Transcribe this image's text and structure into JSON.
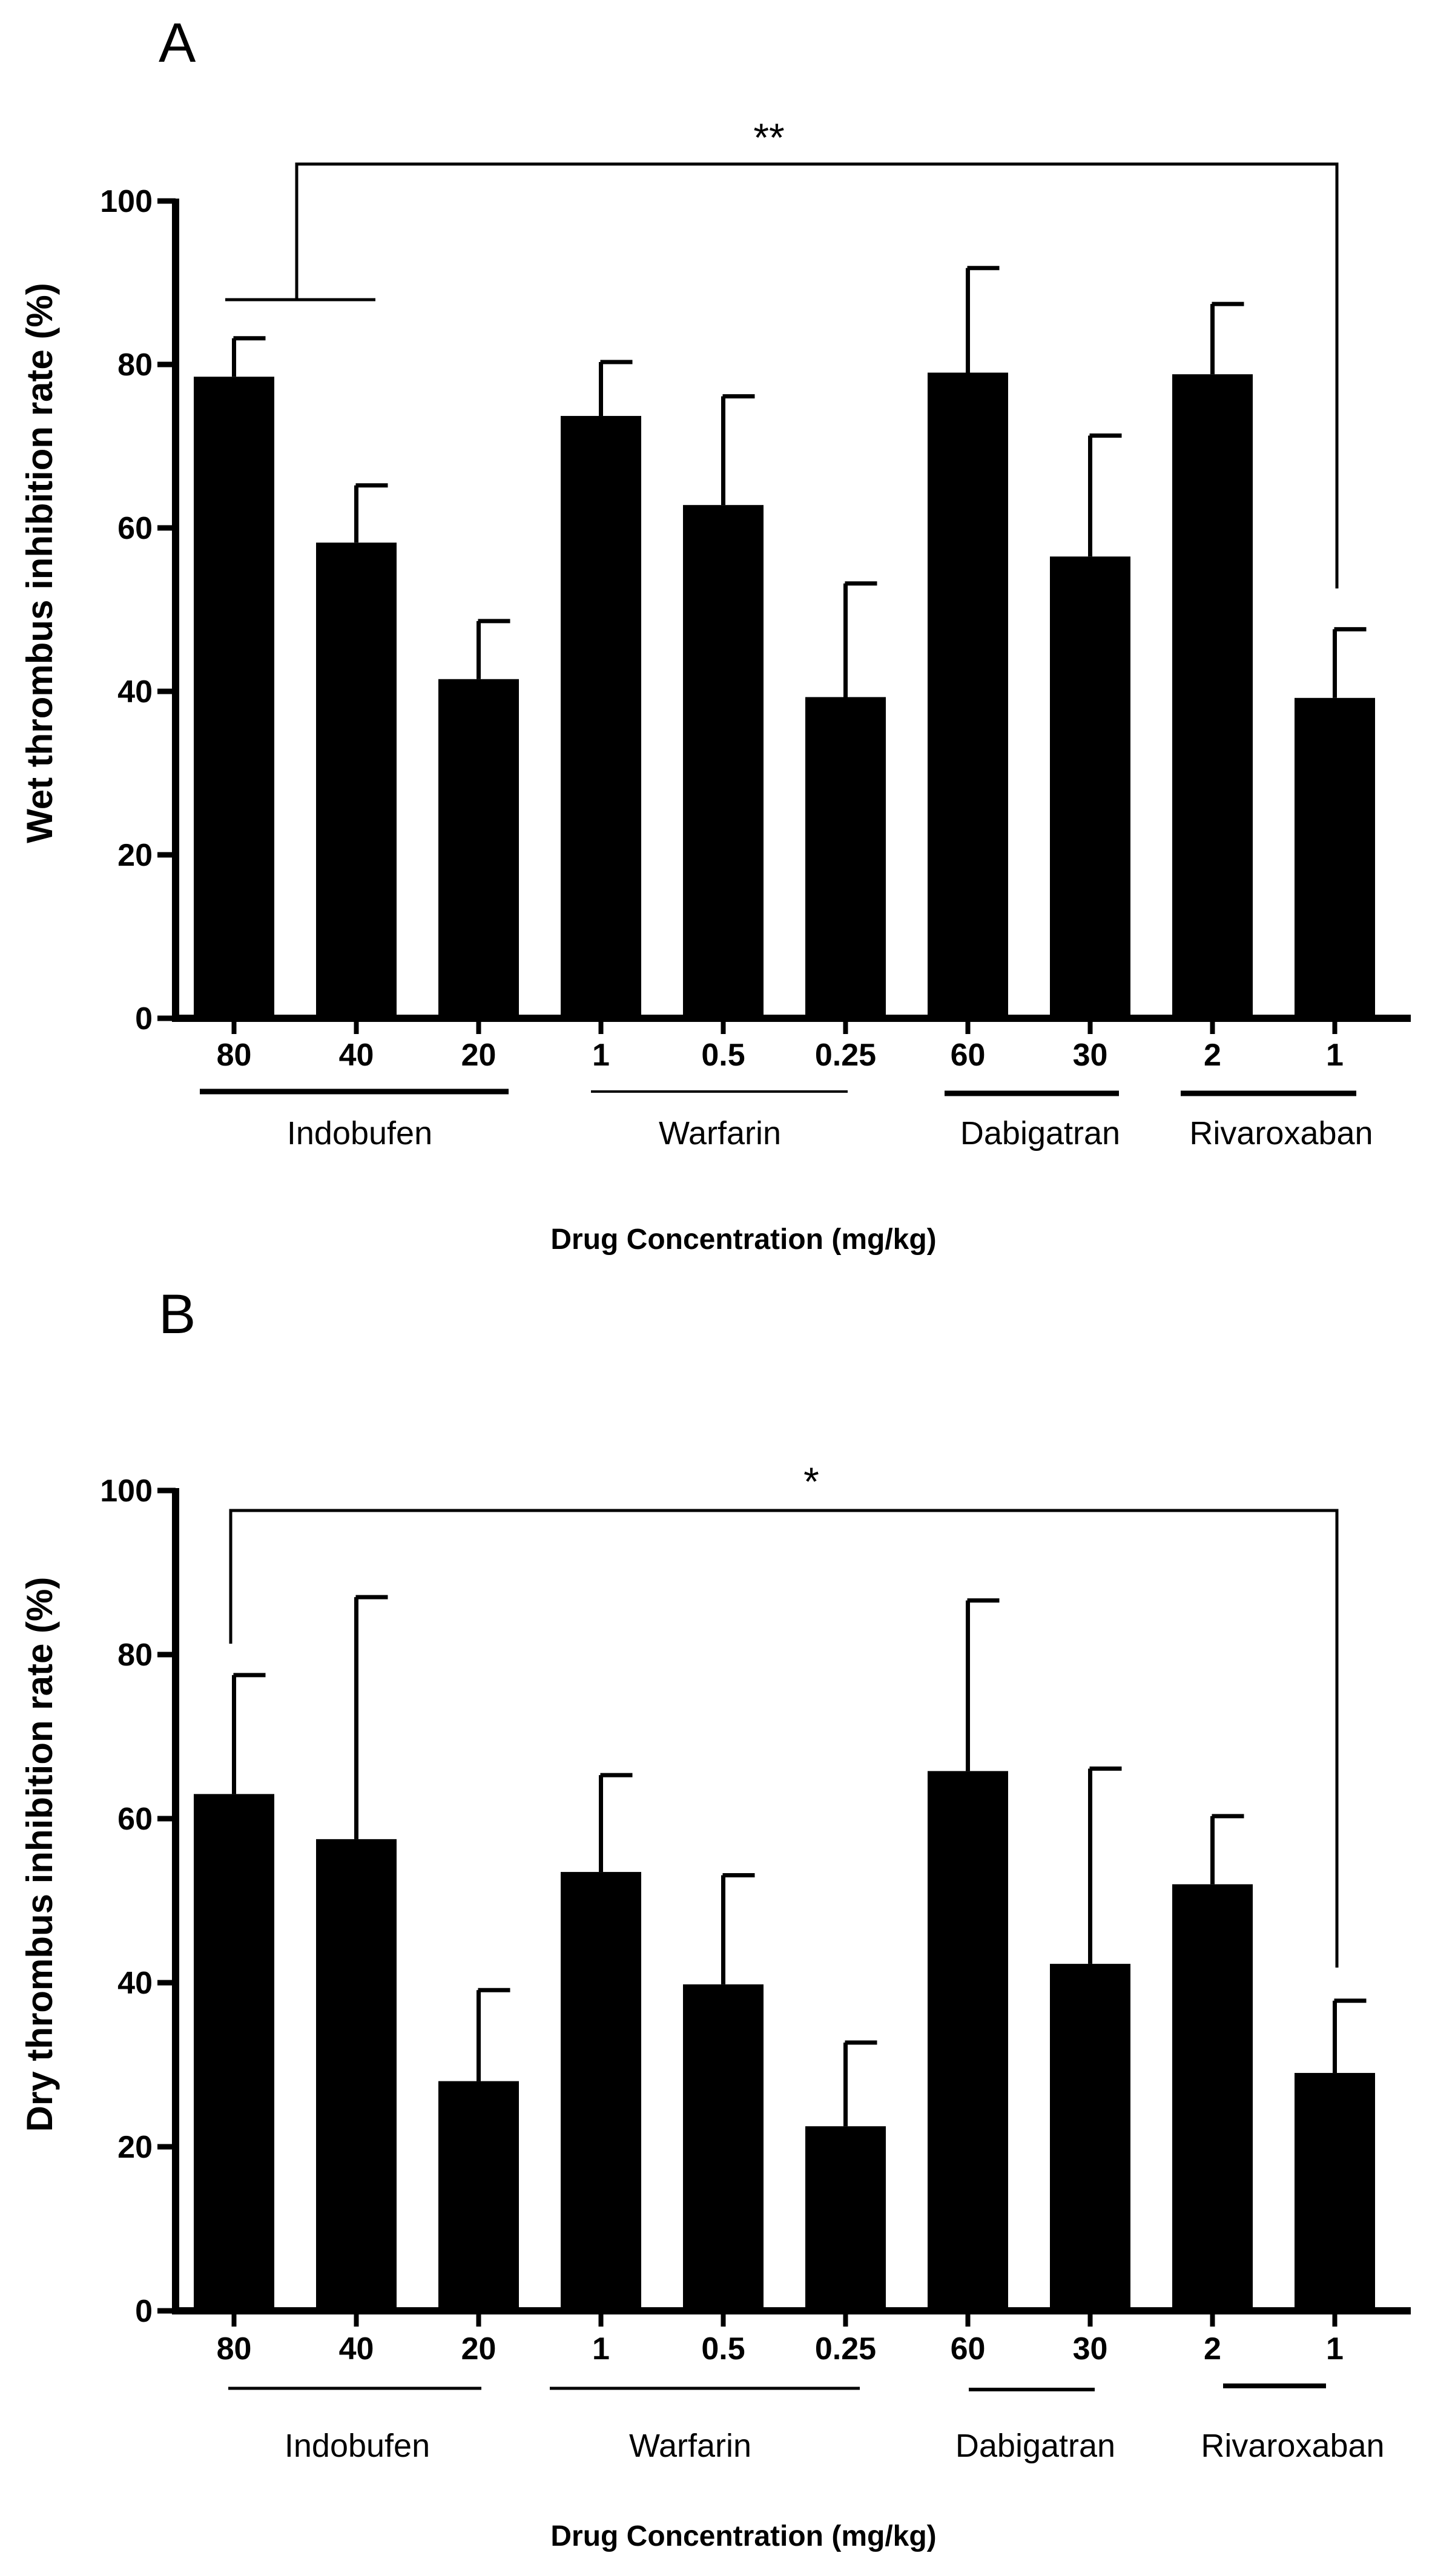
{
  "chart_data": [
    {
      "type": "bar",
      "panel": "A",
      "ylabel": "Wet thrombus inhibition rate (%)",
      "xlabel": "Drug Concentration (mg/kg)",
      "ylim": [
        0,
        100
      ],
      "yticks": [
        "0",
        "20",
        "40",
        "60",
        "80",
        "100"
      ],
      "categories": [
        "80",
        "40",
        "20",
        "1",
        "0.5",
        "0.25",
        "60",
        "30",
        "2",
        "1"
      ],
      "values": [
        78.5,
        58.2,
        41.5,
        73.7,
        62.8,
        39.3,
        79.0,
        56.5,
        78.8,
        39.2
      ],
      "errors": [
        4.7,
        7.0,
        7.1,
        6.6,
        13.3,
        13.9,
        12.8,
        14.8,
        8.6,
        8.4
      ],
      "groups": [
        {
          "label": "Indobufen",
          "span": [
            0,
            2
          ]
        },
        {
          "label": "Warfarin",
          "span": [
            3,
            5
          ]
        },
        {
          "label": "Dabigatran",
          "span": [
            6,
            7
          ]
        },
        {
          "label": "Rivaroxaban",
          "span": [
            8,
            9
          ]
        }
      ],
      "significance": {
        "label": "**",
        "left": [
          0,
          2
        ],
        "right": 9
      }
    },
    {
      "type": "bar",
      "panel": "B",
      "ylabel": "Dry thrombus inhibition rate (%)",
      "xlabel": "Drug Concentration (mg/kg)",
      "ylim": [
        0,
        100
      ],
      "yticks": [
        "0",
        "20",
        "40",
        "60",
        "80",
        "100"
      ],
      "categories": [
        "80",
        "40",
        "20",
        "1",
        "0.5",
        "0.25",
        "60",
        "30",
        "2",
        "1"
      ],
      "values": [
        63.0,
        57.5,
        28.0,
        53.5,
        39.8,
        22.5,
        65.8,
        42.3,
        52.0,
        29.0
      ],
      "errors": [
        14.5,
        29.5,
        11.1,
        11.8,
        13.3,
        10.2,
        20.8,
        23.8,
        8.3,
        8.8
      ],
      "groups": [
        {
          "label": "Indobufen",
          "span": [
            0,
            2
          ]
        },
        {
          "label": "Warfarin",
          "span": [
            3,
            5
          ]
        },
        {
          "label": "Dabigatran",
          "span": [
            6,
            7
          ]
        },
        {
          "label": "Rivaroxaban",
          "span": [
            8,
            9
          ]
        }
      ],
      "significance": {
        "label": "*",
        "left": [
          0,
          0
        ],
        "right": 9
      }
    }
  ],
  "colors": {
    "bar": "#000000",
    "axis": "#000000",
    "background": "#ffffff"
  }
}
